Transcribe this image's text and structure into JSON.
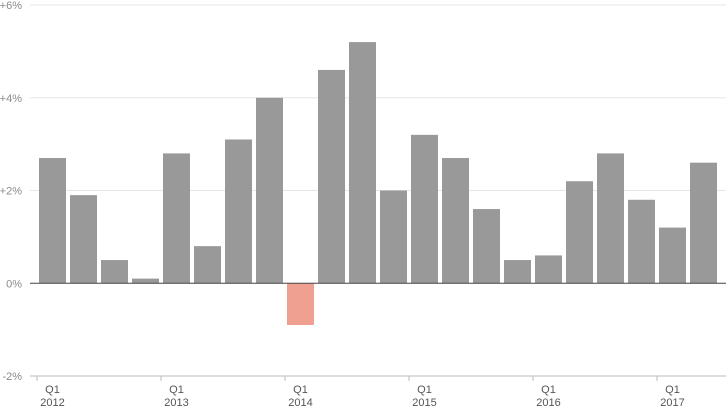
{
  "chart_data": {
    "type": "bar",
    "title": "",
    "xlabel": "",
    "ylabel": "",
    "ylim": [
      -2,
      6
    ],
    "y_ticks": [
      {
        "value": 6,
        "label": "+6%"
      },
      {
        "value": 4,
        "label": "+4%"
      },
      {
        "value": 2,
        "label": "+2%"
      },
      {
        "value": 0,
        "label": "0%"
      },
      {
        "value": -2,
        "label": "-2%"
      }
    ],
    "grid": true,
    "legend": "none",
    "categories": [
      "2012 Q1",
      "2012 Q2",
      "2012 Q3",
      "2012 Q4",
      "2013 Q1",
      "2013 Q2",
      "2013 Q3",
      "2013 Q4",
      "2014 Q1",
      "2014 Q2",
      "2014 Q3",
      "2014 Q4",
      "2015 Q1",
      "2015 Q2",
      "2015 Q3",
      "2015 Q4",
      "2016 Q1",
      "2016 Q2",
      "2016 Q3",
      "2016 Q4",
      "2017 Q1",
      "2017 Q2"
    ],
    "values": [
      2.7,
      1.9,
      0.5,
      0.1,
      2.8,
      0.8,
      3.1,
      4.0,
      -0.9,
      4.6,
      5.2,
      2.0,
      3.2,
      2.7,
      1.6,
      0.5,
      0.6,
      2.2,
      2.8,
      1.8,
      1.2,
      2.6
    ],
    "x_tick_labels": [
      {
        "index": 0,
        "quarter": "Q1",
        "year": "2012"
      },
      {
        "index": 4,
        "quarter": "Q1",
        "year": "2013"
      },
      {
        "index": 8,
        "quarter": "Q1",
        "year": "2014"
      },
      {
        "index": 12,
        "quarter": "Q1",
        "year": "2015"
      },
      {
        "index": 16,
        "quarter": "Q1",
        "year": "2016"
      },
      {
        "index": 20,
        "quarter": "Q1",
        "year": "2017"
      }
    ],
    "colors": {
      "positive": "#999999",
      "negative": "#f0a090",
      "grid": "#e6e6e6",
      "axis": "#444444"
    }
  }
}
